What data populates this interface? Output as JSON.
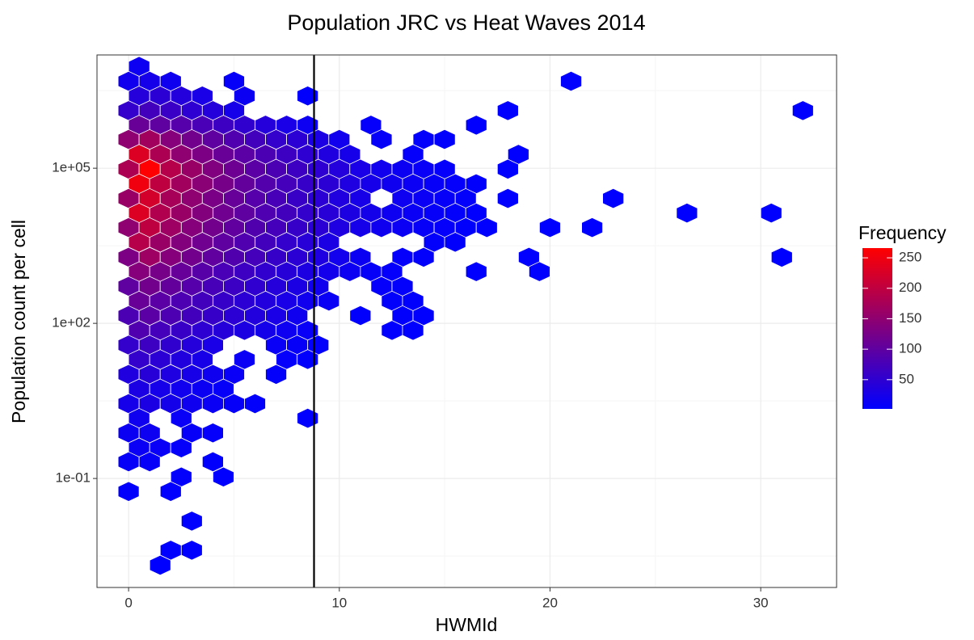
{
  "chart_data": {
    "type": "hexbin",
    "title": "Population JRC vs Heat Waves 2014",
    "x_label": "HWMId",
    "y_label": "Population count per cell",
    "xlim": [
      -1.5,
      33.6
    ],
    "xticks": [
      0,
      10,
      20,
      30
    ],
    "xminor": [
      5,
      15,
      25
    ],
    "ylim": [
      0.00078,
      15500000
    ],
    "y_log": true,
    "yticks": [
      {
        "value": 0.1,
        "label": "1e-01"
      },
      {
        "value": 100,
        "label": "1e+02"
      },
      {
        "value": 100000,
        "label": "1e+05"
      }
    ],
    "yminor": [
      0.003162,
      3.162,
      3162,
      3162278
    ],
    "grid": true,
    "vline": 8.8,
    "legend": {
      "title": "Frequency",
      "ticks": [
        50,
        100,
        150,
        200,
        250
      ],
      "clim": [
        2,
        266
      ],
      "low_color": "#0000ff",
      "high_color": "#ff0000"
    },
    "rows": [
      {
        "y": 9300000,
        "x": [
          0.5
        ],
        "values": [
          15
        ]
      },
      {
        "y": 4800000,
        "x": [
          0,
          1,
          2,
          5,
          21
        ],
        "values": [
          20,
          25,
          18,
          8,
          3
        ]
      },
      {
        "y": 2500000,
        "x": [
          0.5,
          1.5,
          2.5,
          3.5,
          5.5,
          8.5
        ],
        "values": [
          40,
          45,
          38,
          28,
          14,
          4
        ]
      },
      {
        "y": 1300000,
        "x": [
          0,
          1,
          2,
          3,
          4,
          5,
          18,
          32
        ],
        "values": [
          55,
          70,
          62,
          50,
          40,
          25,
          3,
          2
        ]
      },
      {
        "y": 680000,
        "x": [
          0.5,
          1.5,
          2.5,
          3.5,
          4.5,
          5.5,
          6.5,
          7.5,
          8.5,
          11.5,
          16.5
        ],
        "values": [
          110,
          100,
          90,
          78,
          65,
          52,
          40,
          28,
          15,
          6,
          3
        ]
      },
      {
        "y": 360000,
        "x": [
          0,
          1,
          2,
          3,
          4,
          5,
          6,
          7,
          8,
          9,
          10,
          12,
          14,
          15
        ],
        "values": [
          150,
          170,
          140,
          120,
          100,
          85,
          70,
          55,
          45,
          30,
          20,
          8,
          5,
          4
        ]
      },
      {
        "y": 185000,
        "x": [
          0.5,
          1.5,
          2.5,
          3.5,
          4.5,
          5.5,
          6.5,
          7.5,
          8.5,
          9.5,
          10.5,
          13.5,
          18.5
        ],
        "values": [
          230,
          180,
          150,
          130,
          110,
          95,
          80,
          65,
          50,
          35,
          25,
          6,
          3
        ]
      },
      {
        "y": 96000,
        "x": [
          0,
          1,
          2,
          3,
          4,
          5,
          6,
          7,
          8,
          9,
          10,
          11,
          12,
          13,
          14,
          15,
          18
        ],
        "values": [
          180,
          265,
          190,
          160,
          135,
          115,
          95,
          80,
          65,
          50,
          38,
          28,
          20,
          14,
          10,
          6,
          3
        ]
      },
      {
        "y": 50000,
        "x": [
          0.5,
          1.5,
          2.5,
          3.5,
          4.5,
          5.5,
          6.5,
          7.5,
          8.5,
          9.5,
          10.5,
          11.5,
          12.5,
          13.5,
          14.5,
          15.5,
          16.5
        ],
        "values": [
          250,
          200,
          170,
          145,
          125,
          105,
          88,
          72,
          58,
          45,
          34,
          25,
          18,
          13,
          9,
          6,
          4
        ]
      },
      {
        "y": 26000,
        "x": [
          0,
          1,
          2,
          3,
          4,
          5,
          6,
          7,
          8,
          9,
          10,
          11,
          13,
          14,
          15,
          16,
          18,
          23
        ],
        "values": [
          160,
          220,
          175,
          150,
          128,
          108,
          90,
          75,
          60,
          46,
          35,
          26,
          16,
          12,
          8,
          5,
          3,
          3
        ]
      },
      {
        "y": 13600,
        "x": [
          0.5,
          1.5,
          2.5,
          3.5,
          4.5,
          5.5,
          6.5,
          7.5,
          8.5,
          9.5,
          10.5,
          11.5,
          12.5,
          13.5,
          14.5,
          15.5,
          16.5,
          26.5,
          30.5
        ],
        "values": [
          230,
          185,
          160,
          138,
          118,
          100,
          84,
          70,
          56,
          43,
          32,
          24,
          17,
          12,
          8,
          5,
          3,
          2,
          2
        ]
      },
      {
        "y": 7100,
        "x": [
          0,
          1,
          2,
          3,
          4,
          5,
          6,
          7,
          8,
          9,
          10,
          11,
          12,
          13,
          14,
          15,
          16,
          17,
          20,
          22
        ],
        "values": [
          150,
          200,
          165,
          140,
          120,
          102,
          86,
          72,
          58,
          45,
          34,
          25,
          18,
          13,
          9,
          6,
          4,
          3,
          2,
          2
        ]
      },
      {
        "y": 3700,
        "x": [
          0.5,
          1.5,
          2.5,
          3.5,
          4.5,
          5.5,
          6.5,
          7.5,
          8.5,
          9.5,
          14.5,
          15.5
        ],
        "values": [
          190,
          160,
          138,
          118,
          100,
          85,
          70,
          56,
          43,
          30,
          5,
          4
        ]
      },
      {
        "y": 1900,
        "x": [
          0,
          1,
          2,
          3,
          4,
          5,
          6,
          7,
          8,
          9,
          10,
          11,
          13,
          14,
          19,
          31
        ],
        "values": [
          130,
          165,
          140,
          120,
          102,
          86,
          72,
          58,
          45,
          33,
          22,
          14,
          6,
          5,
          3,
          2
        ]
      },
      {
        "y": 1000,
        "x": [
          0.5,
          1.5,
          2.5,
          3.5,
          4.5,
          5.5,
          6.5,
          7.5,
          8.5,
          9.5,
          10.5,
          11.5,
          12.5,
          16.5,
          19.5
        ],
        "values": [
          140,
          125,
          108,
          92,
          78,
          65,
          53,
          42,
          32,
          23,
          15,
          9,
          6,
          3,
          2
        ]
      },
      {
        "y": 520,
        "x": [
          0,
          1,
          2,
          3,
          4,
          5,
          6,
          7,
          8,
          9,
          12,
          13
        ],
        "values": [
          100,
          120,
          105,
          90,
          76,
          63,
          51,
          40,
          30,
          20,
          6,
          5
        ]
      },
      {
        "y": 270,
        "x": [
          0.5,
          1.5,
          2.5,
          3.5,
          4.5,
          5.5,
          6.5,
          7.5,
          8.5,
          9.5,
          12.5,
          13.5
        ],
        "values": [
          110,
          95,
          82,
          70,
          58,
          47,
          37,
          28,
          20,
          12,
          5,
          4
        ]
      },
      {
        "y": 141,
        "x": [
          0,
          1,
          2,
          3,
          4,
          5,
          6,
          7,
          8,
          11,
          13,
          14
        ],
        "values": [
          80,
          95,
          82,
          70,
          58,
          47,
          37,
          28,
          18,
          4,
          4,
          3
        ]
      },
      {
        "y": 73,
        "x": [
          0.5,
          1.5,
          2.5,
          3.5,
          4.5,
          5.5,
          6.5,
          7.5,
          8.5,
          12.5,
          13.5
        ],
        "values": [
          85,
          72,
          60,
          50,
          41,
          32,
          24,
          16,
          10,
          3,
          3
        ]
      },
      {
        "y": 38,
        "x": [
          0,
          1,
          2,
          3,
          4,
          7,
          8,
          9
        ],
        "values": [
          55,
          65,
          52,
          40,
          28,
          10,
          8,
          5
        ]
      },
      {
        "y": 20,
        "x": [
          0.5,
          1.5,
          2.5,
          3.5,
          5.5,
          7.5,
          8.5
        ],
        "values": [
          55,
          45,
          36,
          26,
          12,
          6,
          4
        ]
      },
      {
        "y": 10.3,
        "x": [
          0,
          1,
          2,
          3,
          4,
          5,
          7
        ],
        "values": [
          35,
          42,
          34,
          26,
          18,
          10,
          5
        ]
      },
      {
        "y": 5.4,
        "x": [
          0.5,
          1.5,
          2.5,
          3.5,
          4.5
        ],
        "values": [
          30,
          25,
          20,
          14,
          8
        ]
      },
      {
        "y": 2.8,
        "x": [
          0,
          1,
          2,
          3,
          4,
          5,
          6
        ],
        "values": [
          25,
          30,
          24,
          18,
          12,
          8,
          5
        ]
      },
      {
        "y": 1.46,
        "x": [
          0.5,
          2.5,
          8.5
        ],
        "values": [
          18,
          10,
          3
        ]
      },
      {
        "y": 0.76,
        "x": [
          0,
          1,
          3,
          4
        ],
        "values": [
          14,
          16,
          8,
          6
        ]
      },
      {
        "y": 0.39,
        "x": [
          0.5,
          1.5,
          2.5
        ],
        "values": [
          12,
          10,
          7
        ]
      },
      {
        "y": 0.21,
        "x": [
          0,
          1,
          4
        ],
        "values": [
          8,
          9,
          4
        ]
      },
      {
        "y": 0.107,
        "x": [
          2.5,
          4.5
        ],
        "values": [
          5,
          3
        ]
      },
      {
        "y": 0.056,
        "x": [
          0,
          2
        ],
        "values": [
          4,
          3
        ]
      },
      {
        "y": 0.015,
        "x": [
          3
        ],
        "values": [
          2
        ]
      },
      {
        "y": 0.0041,
        "x": [
          2,
          3
        ],
        "values": [
          2,
          2
        ]
      },
      {
        "y": 0.0021,
        "x": [
          1.5
        ],
        "values": [
          1
        ]
      }
    ]
  }
}
